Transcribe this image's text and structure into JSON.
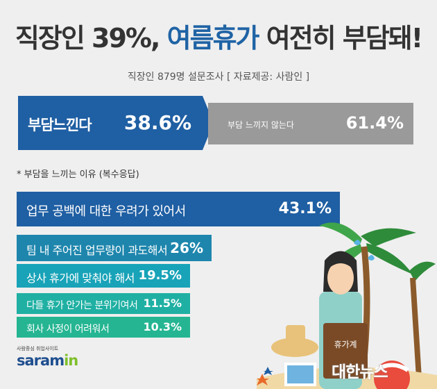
{
  "title": {
    "part1": "직장인 39%,",
    "highlight": "여름휴가",
    "part2": "여전히 부담돼!"
  },
  "subtitle": "직장인 879명 설문조사  [ 자료제공: 사람인 ]",
  "reason_title": "* 부담을 느끼는 이유 (복수응답)",
  "colors": {
    "primary": "#1f5fa3",
    "gray": "#9a9a9a",
    "bars": [
      "#1f5fa3",
      "#1e86ad",
      "#18a3b8",
      "#1fb0a3",
      "#25b592"
    ]
  },
  "logo": {
    "tagline": "사람중심 취업사이트",
    "name_main": "saram",
    "name_accent": "in"
  },
  "watermark": "대한뉴스",
  "suitcase_label": "휴가계",
  "chart_data": [
    {
      "type": "bar",
      "categories": [
        "부담느낀다",
        "부담 느끼지 않는다"
      ],
      "values": [
        38.6,
        61.4
      ],
      "value_labels": [
        "38.6%",
        "61.4%"
      ]
    },
    {
      "type": "bar",
      "title": "* 부담을 느끼는 이유 (복수응답)",
      "categories": [
        "업무 공백에 대한 우려가 있어서",
        "팀 내 주어진 업무량이 과도해서",
        "상사 휴가에 맞춰야 해서",
        "다들 휴가 안가는 분위기여서",
        "회사 사정이 어려워서"
      ],
      "values": [
        43.1,
        26,
        19.5,
        11.5,
        10.3
      ],
      "value_labels": [
        "43.1%",
        "26%",
        "19.5%",
        "11.5%",
        "10.3%"
      ]
    }
  ]
}
